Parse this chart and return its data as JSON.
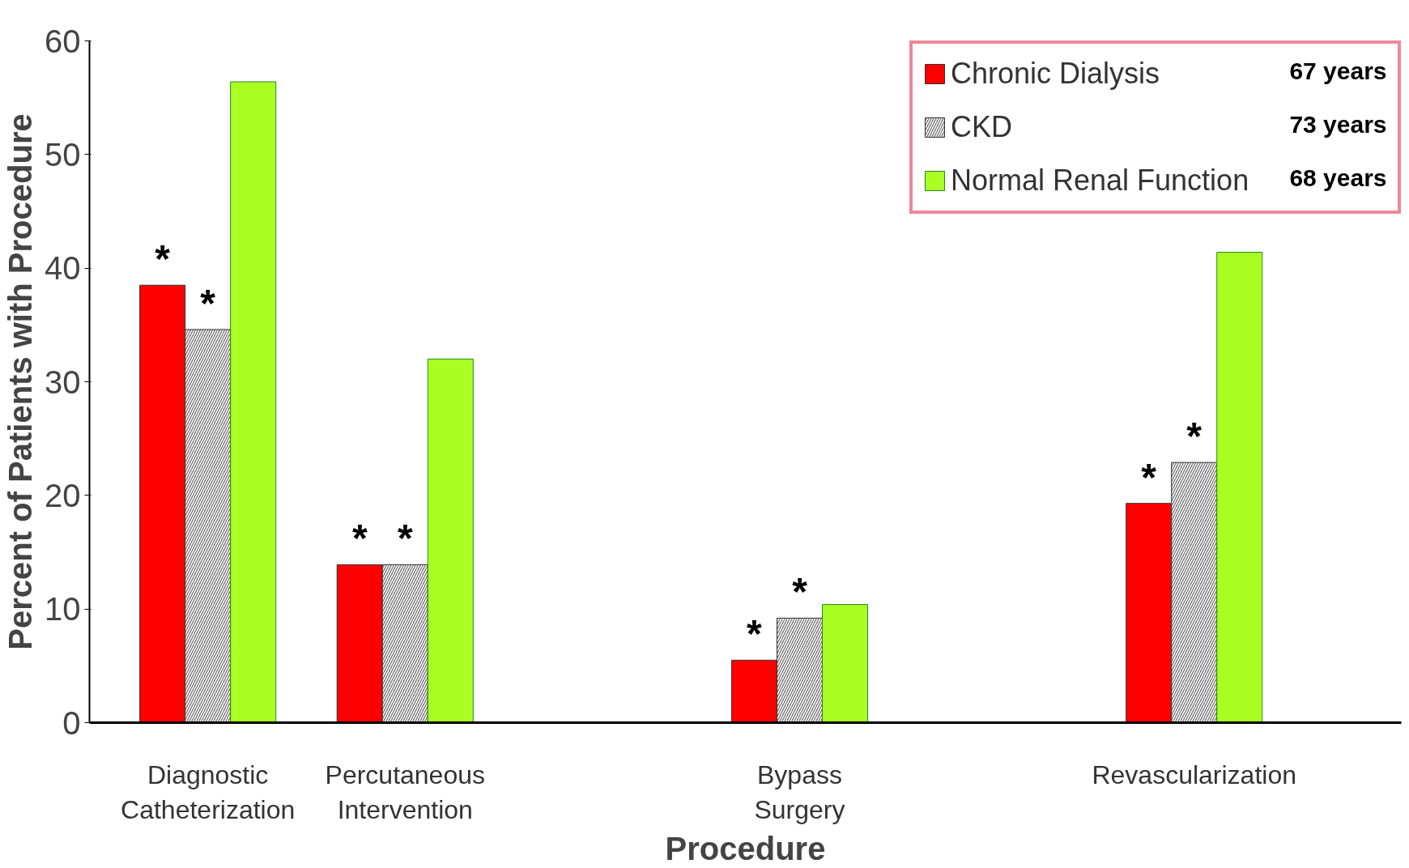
{
  "chart_data": {
    "type": "bar",
    "xlabel": "Procedure",
    "ylabel": "Percent of Patients with Procedure",
    "categories": [
      "Diagnostic\nCatheterization",
      "Percutaneous\nIntervention",
      null,
      "Bypass\nSurgery",
      null,
      "Revascularization"
    ],
    "series": [
      {
        "name": "Chronic Dialysis",
        "color": "#ff0000",
        "values": [
          38.5,
          13.9,
          null,
          5.5,
          null,
          19.3
        ]
      },
      {
        "name": "CKD",
        "color": "#6e6e6e",
        "values": [
          34.6,
          13.9,
          null,
          9.2,
          null,
          22.9
        ]
      },
      {
        "name": "Normal Renal Function",
        "color": "#aaff22",
        "values": [
          56.4,
          32.0,
          null,
          10.4,
          null,
          41.4
        ]
      }
    ],
    "ylim": [
      0,
      60
    ],
    "yticks": [
      0,
      10,
      20,
      30,
      40,
      50,
      60
    ],
    "grid": false,
    "legend": "top right",
    "annotations": [
      "67 years",
      "73 years",
      "68 years",
      "*",
      "*",
      "*",
      "*",
      "*",
      "*",
      "*",
      "*"
    ]
  }
}
